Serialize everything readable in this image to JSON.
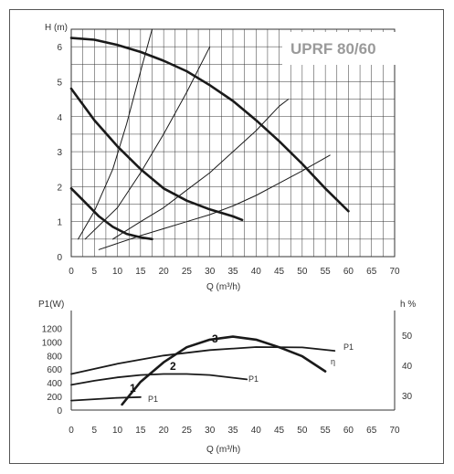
{
  "colors": {
    "curve": "#1a1a1a",
    "grid": "#333333",
    "frame": "#555555",
    "model_title": "#9a9a9a",
    "background": "#ffffff"
  },
  "chart_data": [
    {
      "id": "head",
      "type": "line",
      "title": "UPRF 80/60",
      "ylabel": "H (m)",
      "xlabel": "Q (m³/h)",
      "xlim": [
        0,
        70
      ],
      "ylim": [
        0,
        6.5
      ],
      "x_ticks": [
        0,
        5,
        10,
        15,
        20,
        25,
        30,
        35,
        40,
        45,
        50,
        55,
        60,
        65,
        70
      ],
      "y_ticks": [
        0,
        1,
        2,
        3,
        4,
        5,
        6
      ],
      "grid": true,
      "series": [
        {
          "speed": 3,
          "width": "thick",
          "x": [
            0,
            5,
            10,
            15,
            20,
            25,
            30,
            35,
            40,
            45,
            50,
            55,
            60
          ],
          "y": [
            6.25,
            6.2,
            6.05,
            5.85,
            5.6,
            5.3,
            4.9,
            4.45,
            3.9,
            3.3,
            2.65,
            1.95,
            1.3
          ]
        },
        {
          "speed": 2,
          "width": "thick",
          "x": [
            0,
            5,
            10,
            15,
            20,
            25,
            30,
            35,
            37
          ],
          "y": [
            4.8,
            3.9,
            3.15,
            2.5,
            1.95,
            1.6,
            1.35,
            1.15,
            1.05
          ]
        },
        {
          "speed": 1,
          "width": "thick",
          "x": [
            0,
            3,
            6,
            9,
            12,
            15,
            17.5
          ],
          "y": [
            1.95,
            1.55,
            1.15,
            0.85,
            0.65,
            0.55,
            0.5
          ]
        },
        {
          "kind": "system-curve",
          "width": "thin",
          "x": [
            1.5,
            5,
            9,
            12,
            15,
            17.5
          ],
          "y": [
            0.5,
            1.3,
            2.5,
            3.8,
            5.3,
            6.5
          ]
        },
        {
          "kind": "system-curve",
          "width": "thin",
          "x": [
            3,
            10,
            15,
            20,
            25,
            30
          ],
          "y": [
            0.5,
            1.4,
            2.4,
            3.5,
            4.7,
            6.0
          ]
        },
        {
          "kind": "system-curve",
          "width": "thin",
          "x": [
            9,
            15,
            20,
            25,
            30,
            35,
            40,
            45,
            47
          ],
          "y": [
            0.5,
            1.0,
            1.4,
            1.9,
            2.4,
            3.0,
            3.6,
            4.3,
            4.5
          ]
        },
        {
          "kind": "system-curve",
          "width": "thin",
          "x": [
            6,
            15,
            20,
            25,
            30,
            35,
            40,
            45,
            50,
            56
          ],
          "y": [
            0.2,
            0.6,
            0.8,
            1.0,
            1.2,
            1.45,
            1.75,
            2.1,
            2.45,
            2.9
          ]
        }
      ]
    },
    {
      "id": "power",
      "type": "line",
      "ylabel": "P1(W)",
      "ylabel_right": "h %",
      "xlabel": "Q (m³/h)",
      "xlim": [
        0,
        70
      ],
      "ylim": [
        0,
        1300
      ],
      "ylim_right": [
        25,
        55
      ],
      "x_ticks": [
        0,
        5,
        10,
        15,
        20,
        25,
        30,
        35,
        40,
        45,
        50,
        55,
        60,
        65,
        70
      ],
      "y_ticks": [
        0,
        200,
        400,
        600,
        800,
        1000,
        1200
      ],
      "y_ticks_right": [
        30,
        40,
        50
      ],
      "grid": false,
      "series": [
        {
          "name": "P1",
          "speed": 3,
          "x": [
            0,
            10,
            20,
            30,
            40,
            50,
            57
          ],
          "y": [
            530,
            680,
            800,
            880,
            925,
            920,
            870
          ]
        },
        {
          "name": "P1",
          "speed": 2,
          "x": [
            0,
            5,
            10,
            15,
            20,
            25,
            30,
            35,
            38
          ],
          "y": [
            370,
            430,
            480,
            515,
            530,
            530,
            515,
            475,
            450
          ]
        },
        {
          "name": "P1",
          "speed": 1,
          "x": [
            0,
            5,
            10,
            15
          ],
          "y": [
            140,
            160,
            180,
            190
          ]
        },
        {
          "name": "η",
          "axis": "right",
          "x": [
            11,
            15,
            20,
            25,
            30,
            35,
            40,
            45,
            50,
            55
          ],
          "y": [
            27,
            34.5,
            41,
            46,
            48.5,
            49.5,
            48.5,
            46,
            43,
            38
          ]
        }
      ],
      "curve_markers": [
        "1",
        "2",
        "3"
      ]
    }
  ]
}
